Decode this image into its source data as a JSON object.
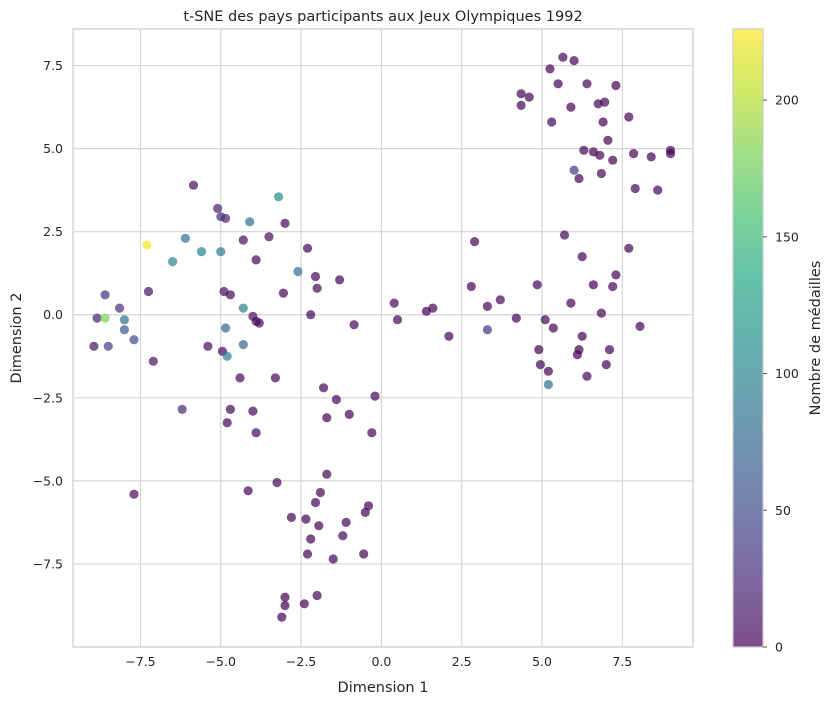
{
  "chart_data": {
    "type": "scatter",
    "title": "t-SNE des pays participants aux Jeux Olympiques 1992",
    "xlabel": "Dimension 1",
    "ylabel": "Dimension 2",
    "xlim": [
      -9.6,
      9.7
    ],
    "ylim": [
      -10.0,
      8.6
    ],
    "x_ticks": [
      -7.5,
      -5.0,
      -2.5,
      0.0,
      2.5,
      5.0,
      7.5
    ],
    "x_tick_labels": [
      "−7.5",
      "−5.0",
      "−2.5",
      "0.0",
      "2.5",
      "5.0",
      "7.5"
    ],
    "y_ticks": [
      7.5,
      5.0,
      2.5,
      0.0,
      -2.5,
      -5.0,
      -7.5
    ],
    "y_tick_labels": [
      "7.5",
      "5.0",
      "2.5",
      "0.0",
      "−2.5",
      "−5.0",
      "−7.5"
    ],
    "grid": true,
    "colormap": "viridis",
    "point_alpha": 0.7,
    "colorbar": {
      "label": "Nombre de médailles",
      "range": [
        0,
        226
      ],
      "ticks": [
        0,
        50,
        100,
        150,
        200
      ],
      "tick_labels": [
        "0",
        "50",
        "100",
        "150",
        "200"
      ]
    },
    "points": [
      {
        "x": -7.3,
        "y": 2.1,
        "v": 224
      },
      {
        "x": -8.6,
        "y": -0.1,
        "v": 182
      },
      {
        "x": -3.2,
        "y": 3.55,
        "v": 108
      },
      {
        "x": -6.5,
        "y": 1.6,
        "v": 100
      },
      {
        "x": -4.3,
        "y": 0.2,
        "v": 98
      },
      {
        "x": -5.6,
        "y": 1.9,
        "v": 97
      },
      {
        "x": -5.0,
        "y": 1.9,
        "v": 94
      },
      {
        "x": -4.8,
        "y": -1.25,
        "v": 94
      },
      {
        "x": -6.1,
        "y": 2.3,
        "v": 82
      },
      {
        "x": -4.1,
        "y": 2.8,
        "v": 82
      },
      {
        "x": -2.6,
        "y": 1.3,
        "v": 82
      },
      {
        "x": -8.0,
        "y": -0.15,
        "v": 80
      },
      {
        "x": 5.2,
        "y": -2.1,
        "v": 80
      },
      {
        "x": -4.85,
        "y": -0.4,
        "v": 75
      },
      {
        "x": -4.3,
        "y": -0.9,
        "v": 72
      },
      {
        "x": -8.0,
        "y": -0.45,
        "v": 60
      },
      {
        "x": -7.7,
        "y": -0.75,
        "v": 50
      },
      {
        "x": -8.5,
        "y": -0.95,
        "v": 38
      },
      {
        "x": 6.0,
        "y": 4.35,
        "v": 35
      },
      {
        "x": 3.3,
        "y": -0.45,
        "v": 33
      },
      {
        "x": -8.6,
        "y": 0.6,
        "v": 30
      },
      {
        "x": -8.15,
        "y": 0.2,
        "v": 28
      },
      {
        "x": -8.85,
        "y": -0.1,
        "v": 20
      },
      {
        "x": -8.95,
        "y": -0.95,
        "v": 12
      },
      {
        "x": -7.1,
        "y": -1.4,
        "v": 10
      },
      {
        "x": -7.25,
        "y": 0.7,
        "v": 8
      },
      {
        "x": -7.7,
        "y": -5.4,
        "v": 5
      },
      {
        "x": -6.2,
        "y": -2.85,
        "v": 25
      },
      {
        "x": -5.85,
        "y": 3.9,
        "v": 8
      },
      {
        "x": -5.1,
        "y": 3.2,
        "v": 20
      },
      {
        "x": -5.0,
        "y": 2.95,
        "v": 28
      },
      {
        "x": -4.85,
        "y": 2.9,
        "v": 22
      },
      {
        "x": -5.4,
        "y": -0.95,
        "v": 6
      },
      {
        "x": -4.95,
        "y": -1.1,
        "v": 4
      },
      {
        "x": -4.9,
        "y": 0.7,
        "v": 6
      },
      {
        "x": -4.7,
        "y": 0.6,
        "v": 4
      },
      {
        "x": -4.3,
        "y": 2.25,
        "v": 6
      },
      {
        "x": -4.4,
        "y": -1.9,
        "v": 4
      },
      {
        "x": -4.0,
        "y": -0.05,
        "v": 10
      },
      {
        "x": -3.9,
        "y": -0.2,
        "v": 4
      },
      {
        "x": -3.8,
        "y": -0.25,
        "v": 3
      },
      {
        "x": -3.9,
        "y": 1.65,
        "v": 4
      },
      {
        "x": -3.5,
        "y": 2.35,
        "v": 8
      },
      {
        "x": -3.0,
        "y": 2.75,
        "v": 4
      },
      {
        "x": -3.05,
        "y": 0.65,
        "v": 2
      },
      {
        "x": -2.3,
        "y": 2.0,
        "v": 4
      },
      {
        "x": -2.05,
        "y": 1.15,
        "v": 3
      },
      {
        "x": -2.0,
        "y": 0.8,
        "v": 2
      },
      {
        "x": -2.2,
        "y": 0.0,
        "v": 2
      },
      {
        "x": -1.3,
        "y": 1.05,
        "v": 4
      },
      {
        "x": -0.85,
        "y": -0.3,
        "v": 2
      },
      {
        "x": -4.7,
        "y": -2.85,
        "v": 3
      },
      {
        "x": -4.8,
        "y": -3.25,
        "v": 2
      },
      {
        "x": -4.0,
        "y": -2.9,
        "v": 2
      },
      {
        "x": -3.9,
        "y": -3.55,
        "v": 2
      },
      {
        "x": -3.3,
        "y": -1.9,
        "v": 2
      },
      {
        "x": -4.15,
        "y": -5.3,
        "v": 2
      },
      {
        "x": -3.25,
        "y": -5.05,
        "v": 1
      },
      {
        "x": -3.0,
        "y": -8.5,
        "v": 1
      },
      {
        "x": -3.0,
        "y": -8.75,
        "v": 1
      },
      {
        "x": -3.1,
        "y": -9.1,
        "v": 1
      },
      {
        "x": -2.4,
        "y": -8.7,
        "v": 1
      },
      {
        "x": -2.0,
        "y": -8.45,
        "v": 1
      },
      {
        "x": -2.8,
        "y": -6.1,
        "v": 1
      },
      {
        "x": -2.35,
        "y": -6.15,
        "v": 1
      },
      {
        "x": -2.3,
        "y": -7.2,
        "v": 1
      },
      {
        "x": -2.2,
        "y": -6.75,
        "v": 1
      },
      {
        "x": -1.95,
        "y": -6.35,
        "v": 1
      },
      {
        "x": -1.7,
        "y": -4.8,
        "v": 1
      },
      {
        "x": -1.9,
        "y": -5.35,
        "v": 1
      },
      {
        "x": -2.05,
        "y": -5.65,
        "v": 1
      },
      {
        "x": -1.5,
        "y": -7.35,
        "v": 1
      },
      {
        "x": -1.2,
        "y": -6.65,
        "v": 1
      },
      {
        "x": -1.1,
        "y": -6.25,
        "v": 1
      },
      {
        "x": -0.55,
        "y": -7.2,
        "v": 1
      },
      {
        "x": -0.5,
        "y": -5.95,
        "v": 1
      },
      {
        "x": -0.4,
        "y": -5.75,
        "v": 1
      },
      {
        "x": -0.3,
        "y": -3.55,
        "v": 1
      },
      {
        "x": -0.2,
        "y": -2.45,
        "v": 1
      },
      {
        "x": -1.8,
        "y": -2.2,
        "v": 1
      },
      {
        "x": -1.7,
        "y": -3.1,
        "v": 1
      },
      {
        "x": -1.4,
        "y": -2.55,
        "v": 1
      },
      {
        "x": -1.0,
        "y": -3.0,
        "v": 1
      },
      {
        "x": 0.4,
        "y": 0.35,
        "v": 1
      },
      {
        "x": 0.5,
        "y": -0.15,
        "v": 1
      },
      {
        "x": 1.4,
        "y": 0.1,
        "v": 1
      },
      {
        "x": 1.6,
        "y": 0.2,
        "v": 1
      },
      {
        "x": 2.1,
        "y": -0.65,
        "v": 1
      },
      {
        "x": 2.8,
        "y": 0.85,
        "v": 1
      },
      {
        "x": 2.9,
        "y": 2.2,
        "v": 1
      },
      {
        "x": 3.3,
        "y": 0.25,
        "v": 1
      },
      {
        "x": 3.7,
        "y": 0.45,
        "v": 1
      },
      {
        "x": 4.2,
        "y": -0.1,
        "v": 1
      },
      {
        "x": 4.85,
        "y": 0.9,
        "v": 1
      },
      {
        "x": 4.9,
        "y": -1.05,
        "v": 1
      },
      {
        "x": 4.95,
        "y": -1.5,
        "v": 1
      },
      {
        "x": 5.1,
        "y": -0.15,
        "v": 1
      },
      {
        "x": 5.2,
        "y": -1.7,
        "v": 1
      },
      {
        "x": 5.35,
        "y": -0.4,
        "v": 1
      },
      {
        "x": 5.7,
        "y": 2.4,
        "v": 1
      },
      {
        "x": 5.9,
        "y": 0.35,
        "v": 1
      },
      {
        "x": 6.1,
        "y": -1.2,
        "v": 1
      },
      {
        "x": 6.15,
        "y": -1.05,
        "v": 1
      },
      {
        "x": 6.25,
        "y": -0.65,
        "v": 1
      },
      {
        "x": 6.25,
        "y": 1.75,
        "v": 1
      },
      {
        "x": 6.4,
        "y": -1.85,
        "v": 1
      },
      {
        "x": 6.6,
        "y": 0.9,
        "v": 1
      },
      {
        "x": 6.85,
        "y": 0.05,
        "v": 1
      },
      {
        "x": 7.0,
        "y": -1.5,
        "v": 1
      },
      {
        "x": 7.1,
        "y": -1.05,
        "v": 1
      },
      {
        "x": 7.2,
        "y": 0.85,
        "v": 1
      },
      {
        "x": 7.3,
        "y": 1.2,
        "v": 1
      },
      {
        "x": 7.7,
        "y": 2.0,
        "v": 1
      },
      {
        "x": 8.05,
        "y": -0.35,
        "v": 1
      },
      {
        "x": 4.35,
        "y": 6.65,
        "v": 1
      },
      {
        "x": 4.35,
        "y": 6.3,
        "v": 1
      },
      {
        "x": 4.6,
        "y": 6.55,
        "v": 1
      },
      {
        "x": 5.25,
        "y": 7.4,
        "v": 1
      },
      {
        "x": 5.3,
        "y": 5.8,
        "v": 1
      },
      {
        "x": 5.5,
        "y": 6.95,
        "v": 1
      },
      {
        "x": 5.65,
        "y": 7.75,
        "v": 1
      },
      {
        "x": 5.9,
        "y": 6.25,
        "v": 1
      },
      {
        "x": 6.0,
        "y": 7.65,
        "v": 1
      },
      {
        "x": 6.15,
        "y": 4.1,
        "v": 1
      },
      {
        "x": 6.3,
        "y": 4.95,
        "v": 1
      },
      {
        "x": 6.4,
        "y": 6.95,
        "v": 1
      },
      {
        "x": 6.6,
        "y": 4.9,
        "v": 1
      },
      {
        "x": 6.75,
        "y": 6.35,
        "v": 1
      },
      {
        "x": 6.8,
        "y": 4.8,
        "v": 1
      },
      {
        "x": 6.85,
        "y": 4.25,
        "v": 1
      },
      {
        "x": 6.9,
        "y": 5.8,
        "v": 1
      },
      {
        "x": 6.95,
        "y": 6.4,
        "v": 1
      },
      {
        "x": 7.05,
        "y": 5.25,
        "v": 1
      },
      {
        "x": 7.2,
        "y": 4.65,
        "v": 1
      },
      {
        "x": 7.3,
        "y": 6.9,
        "v": 1
      },
      {
        "x": 7.7,
        "y": 5.95,
        "v": 1
      },
      {
        "x": 7.85,
        "y": 4.85,
        "v": 1
      },
      {
        "x": 7.9,
        "y": 3.8,
        "v": 1
      },
      {
        "x": 8.4,
        "y": 4.75,
        "v": 1
      },
      {
        "x": 8.6,
        "y": 3.75,
        "v": 1
      },
      {
        "x": 9.0,
        "y": 4.95,
        "v": 1
      },
      {
        "x": 9.0,
        "y": 4.85,
        "v": 1
      }
    ]
  }
}
